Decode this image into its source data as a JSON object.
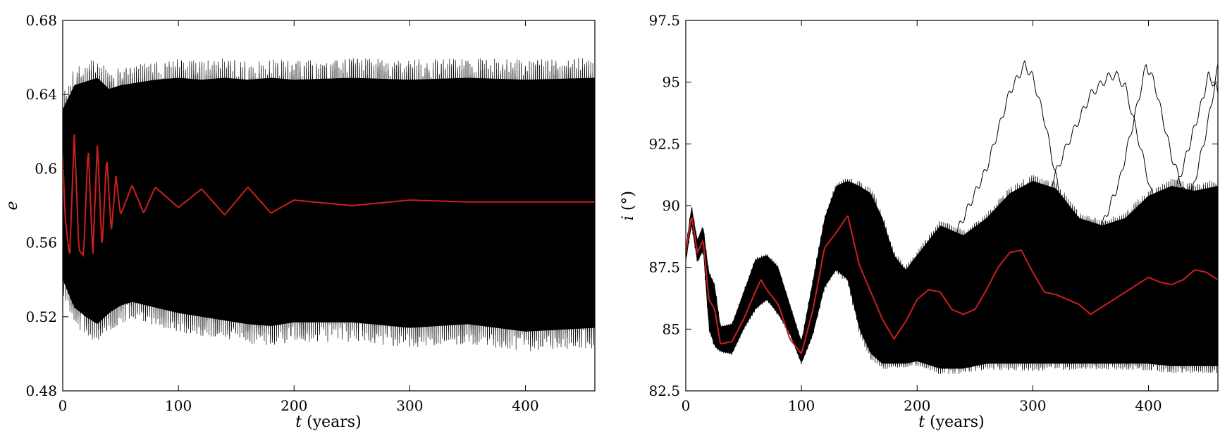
{
  "colors": {
    "ensemble": "#000000",
    "mean": "#cc1f1f",
    "axes": "#000000"
  },
  "chart_data": [
    {
      "type": "line",
      "xlabel_var": "t",
      "xlabel_unit": "(years)",
      "ylabel": "e",
      "xlim": [
        0,
        460
      ],
      "ylim": [
        0.48,
        0.68
      ],
      "xticks": [
        0,
        100,
        200,
        300,
        400
      ],
      "xtick_labels": [
        "0",
        "100",
        "200",
        "300",
        "400"
      ],
      "yticks": [
        0.48,
        0.52,
        0.56,
        0.6,
        0.64,
        0.68
      ],
      "ytick_labels": [
        "0.48",
        "0.52",
        "0.56",
        "0.6",
        "0.64",
        "0.68"
      ],
      "grid": false,
      "series": [
        {
          "role": "ensemble",
          "x": [
            0,
            10,
            20,
            30,
            40,
            50,
            60,
            80,
            100,
            120,
            140,
            160,
            180,
            200,
            250,
            300,
            350,
            400,
            460
          ],
          "y_max": [
            0.632,
            0.645,
            0.647,
            0.649,
            0.643,
            0.645,
            0.646,
            0.648,
            0.649,
            0.648,
            0.649,
            0.648,
            0.649,
            0.648,
            0.649,
            0.648,
            0.649,
            0.648,
            0.649
          ],
          "y_min": [
            0.54,
            0.525,
            0.52,
            0.516,
            0.522,
            0.526,
            0.528,
            0.525,
            0.522,
            0.52,
            0.518,
            0.516,
            0.515,
            0.517,
            0.517,
            0.514,
            0.516,
            0.512,
            0.514
          ]
        },
        {
          "role": "mean",
          "x": [
            0,
            2,
            6,
            10,
            14,
            18,
            22,
            26,
            30,
            34,
            38,
            42,
            46,
            50,
            60,
            70,
            80,
            100,
            120,
            140,
            160,
            180,
            200,
            250,
            300,
            350,
            400,
            460
          ],
          "y": [
            0.608,
            0.574,
            0.552,
            0.619,
            0.556,
            0.553,
            0.612,
            0.553,
            0.614,
            0.556,
            0.607,
            0.566,
            0.596,
            0.575,
            0.591,
            0.576,
            0.59,
            0.579,
            0.589,
            0.575,
            0.59,
            0.576,
            0.583,
            0.58,
            0.583,
            0.582,
            0.582,
            0.582
          ]
        }
      ]
    },
    {
      "type": "line",
      "xlabel_var": "t",
      "xlabel_unit": "(years)",
      "ylabel_var": "i",
      "ylabel_unit": "(°)",
      "xlim": [
        0,
        460
      ],
      "ylim": [
        82.5,
        97.5
      ],
      "xticks": [
        0,
        100,
        200,
        300,
        400
      ],
      "xtick_labels": [
        "0",
        "100",
        "200",
        "300",
        "400"
      ],
      "yticks": [
        82.5,
        85,
        87.5,
        90,
        92.5,
        95,
        97.5
      ],
      "ytick_labels": [
        "82.5",
        "85",
        "87.5",
        "90",
        "92.5",
        "95",
        "97.5"
      ],
      "grid": false,
      "series": [
        {
          "role": "ensemble",
          "x": [
            0,
            5,
            10,
            15,
            20,
            25,
            30,
            40,
            50,
            60,
            70,
            80,
            90,
            100,
            110,
            120,
            130,
            140,
            150,
            160,
            170,
            180,
            190,
            200,
            220,
            240,
            260,
            280,
            300,
            320,
            340,
            360,
            380,
            400,
            420,
            440,
            460
          ],
          "y_max": [
            88.3,
            90.0,
            88.6,
            89.2,
            87.3,
            86.8,
            85.1,
            85.2,
            86.5,
            87.8,
            88.0,
            87.5,
            86.0,
            84.5,
            87.0,
            89.5,
            90.8,
            91.0,
            90.8,
            90.5,
            89.5,
            88.0,
            87.4,
            88.0,
            89.2,
            88.8,
            89.5,
            90.5,
            91.0,
            90.7,
            89.5,
            89.2,
            89.5,
            90.4,
            90.8,
            90.6,
            90.8
          ],
          "y_min": [
            87.7,
            89.2,
            87.7,
            88.2,
            85.0,
            84.3,
            84.1,
            84.0,
            85.0,
            85.8,
            86.2,
            85.6,
            84.8,
            83.6,
            84.8,
            86.7,
            87.4,
            87.0,
            85.0,
            84.0,
            83.6,
            83.6,
            83.6,
            83.7,
            83.4,
            83.4,
            83.6,
            83.6,
            83.6,
            83.6,
            83.6,
            83.6,
            83.6,
            83.6,
            83.5,
            83.5,
            83.5
          ]
        },
        {
          "role": "mean",
          "x": [
            0,
            5,
            10,
            15,
            20,
            25,
            30,
            40,
            50,
            60,
            65,
            70,
            80,
            90,
            100,
            110,
            120,
            130,
            140,
            150,
            160,
            170,
            180,
            190,
            200,
            210,
            220,
            230,
            240,
            250,
            260,
            270,
            280,
            290,
            300,
            310,
            320,
            340,
            350,
            360,
            380,
            400,
            410,
            420,
            430,
            440,
            450,
            460
          ],
          "y": [
            88.1,
            89.6,
            88.1,
            88.6,
            86.2,
            85.8,
            84.4,
            84.5,
            85.4,
            86.5,
            87.0,
            86.6,
            86.0,
            84.6,
            84.0,
            85.8,
            88.3,
            88.9,
            89.6,
            87.6,
            86.5,
            85.4,
            84.6,
            85.3,
            86.2,
            86.6,
            86.5,
            85.8,
            85.6,
            85.8,
            86.6,
            87.5,
            88.1,
            88.2,
            87.3,
            86.5,
            86.4,
            86.0,
            85.6,
            85.9,
            86.5,
            87.1,
            86.9,
            86.8,
            87.0,
            87.4,
            87.3,
            87.0
          ]
        },
        {
          "role": "outlier-trajectories",
          "note_type": "ensemble-excursions",
          "tracks": [
            {
              "x": [
                200,
                230,
                260,
                280,
                293,
                300,
                310,
                325,
                340
              ],
              "y": [
                86.5,
                88.5,
                91.5,
                94.6,
                95.7,
                95.2,
                93.5,
                90.0,
                87.0
              ]
            },
            {
              "x": [
                260,
                300,
                330,
                350,
                365,
                372,
                380,
                395,
                410
              ],
              "y": [
                86.5,
                89.0,
                92.5,
                94.5,
                95.2,
                95.3,
                94.8,
                92.0,
                89.0
              ]
            },
            {
              "x": [
                320,
                350,
                375,
                390,
                398,
                405,
                420,
                435,
                450,
                460
              ],
              "y": [
                86.0,
                88.0,
                91.0,
                94.0,
                95.7,
                95.0,
                92.0,
                90.0,
                93.0,
                95.6
              ]
            },
            {
              "x": [
                330,
                360,
                390,
                420,
                445,
                452,
                460
              ],
              "y": [
                86.0,
                87.5,
                88.5,
                90.0,
                94.0,
                95.3,
                94.6
              ]
            }
          ]
        }
      ]
    }
  ]
}
